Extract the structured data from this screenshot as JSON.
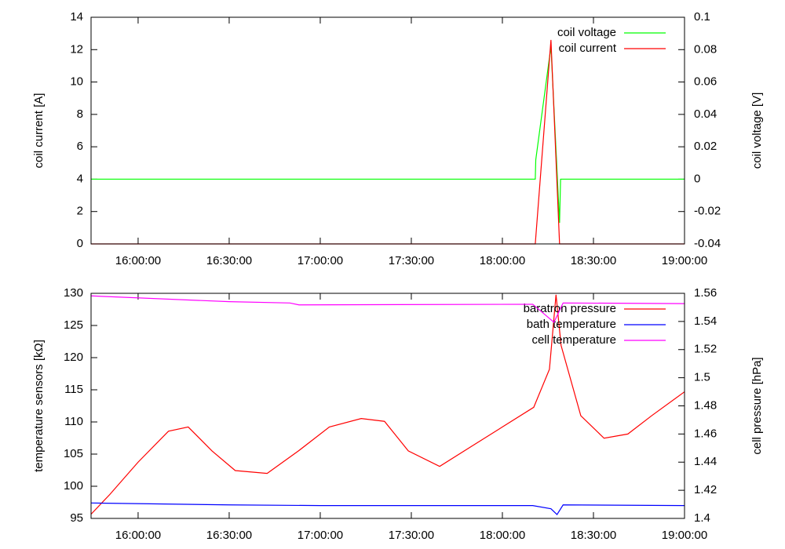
{
  "chart_data": [
    {
      "type": "line",
      "ylabel": "coil current [A]",
      "y2label": "coil voltage [V]",
      "xlim": [
        "15:44:30",
        "19:00:00"
      ],
      "xticks": [
        "16:00:00",
        "16:30:00",
        "17:00:00",
        "17:30:00",
        "18:00:00",
        "18:30:00",
        "19:00:00"
      ],
      "ylim": [
        0,
        14
      ],
      "yticks": [
        0,
        2,
        4,
        6,
        8,
        10,
        12,
        14
      ],
      "y2lim": [
        -0.04,
        0.1
      ],
      "y2ticks": [
        -0.04,
        -0.02,
        0,
        0.02,
        0.04,
        0.06,
        0.08,
        0.1
      ],
      "legend": "top-right",
      "series": [
        {
          "name": "coil voltage",
          "color": "#00ff00",
          "axis": "y2",
          "x": [
            "15:44:30",
            "18:10:50",
            "18:11:00",
            "18:16:00",
            "18:18:50",
            "18:19:10",
            "19:00:00"
          ],
          "values": [
            0,
            0,
            0.012,
            0.082,
            -0.027,
            0,
            0
          ]
        },
        {
          "name": "coil current",
          "color": "#ff0000",
          "x": [
            "15:44:30",
            "18:10:50",
            "18:16:00",
            "18:18:50",
            "19:00:00"
          ],
          "values": [
            0,
            0,
            12.6,
            0,
            0
          ]
        }
      ]
    },
    {
      "type": "line",
      "ylabel": "temperature sensors [kΩ]",
      "y2label": "cell pressure [hPa]",
      "xlim": [
        "15:44:30",
        "19:00:00"
      ],
      "xticks": [
        "16:00:00",
        "16:30:00",
        "17:00:00",
        "17:30:00",
        "18:00:00",
        "18:30:00",
        "19:00:00"
      ],
      "ylim": [
        95,
        130
      ],
      "yticks": [
        95,
        100,
        105,
        110,
        115,
        120,
        125,
        130
      ],
      "y2lim": [
        1.4,
        1.56
      ],
      "y2ticks": [
        1.4,
        1.42,
        1.44,
        1.46,
        1.48,
        1.5,
        1.52,
        1.54,
        1.56
      ],
      "legend": "top-right",
      "series": [
        {
          "name": "baratron pressure",
          "color": "#ff0000",
          "axis": "y2",
          "x": [
            "15:44:30",
            "15:50:40",
            "16:00:00",
            "16:10:00",
            "16:16:30",
            "16:24:20",
            "16:32:00",
            "16:42:30",
            "16:52:50",
            "17:03:00",
            "17:13:30",
            "17:21:10",
            "17:29:00",
            "17:39:20",
            "17:49:40",
            "18:00:00",
            "18:10:20",
            "18:15:30",
            "18:17:40",
            "18:19:20",
            "18:25:50",
            "18:33:30",
            "18:41:20",
            "18:49:10",
            "19:00:00"
          ],
          "values": [
            1.403,
            1.417,
            1.44,
            1.462,
            1.465,
            1.448,
            1.434,
            1.432,
            1.448,
            1.465,
            1.471,
            1.469,
            1.448,
            1.437,
            1.451,
            1.465,
            1.479,
            1.506,
            1.559,
            1.523,
            1.473,
            1.457,
            1.46,
            1.473,
            1.49
          ]
        },
        {
          "name": "bath temperature",
          "color": "#0000ff",
          "x": [
            "15:44:30",
            "16:30:00",
            "17:00:00",
            "18:10:00",
            "18:16:00",
            "18:18:00",
            "18:20:00",
            "19:00:00"
          ],
          "values": [
            97.4,
            97.1,
            97.0,
            97.0,
            96.5,
            95.6,
            97.1,
            97.0
          ]
        },
        {
          "name": "cell temperature",
          "color": "#ff00ff",
          "x": [
            "15:44:30",
            "16:30:00",
            "16:50:00",
            "16:53:00",
            "18:10:00",
            "18:17:00",
            "18:20:00",
            "19:00:00"
          ],
          "values": [
            129.6,
            128.7,
            128.5,
            128.2,
            128.3,
            125.5,
            128.5,
            128.4
          ]
        }
      ]
    }
  ]
}
